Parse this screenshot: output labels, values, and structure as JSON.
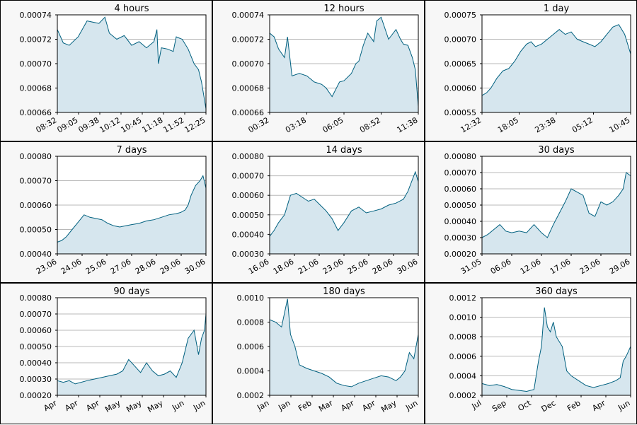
{
  "colors": {
    "line": "#00607f",
    "fill": "#d6e6ee",
    "grid": "#b8b8b8",
    "panel_bg": "#f7f7f7",
    "plot_bg": "#ffffff",
    "border": "#000000"
  },
  "chart_data": [
    {
      "type": "area",
      "title": "4 hours",
      "ylim": [
        0.00066,
        0.00074
      ],
      "yticks": [
        "0.00066",
        "0.00068",
        "0.00070",
        "0.00072",
        "0.00074"
      ],
      "xticks": [
        "08:32",
        "09:05",
        "09:38",
        "10:12",
        "10:45",
        "11:18",
        "11:52",
        "12:25"
      ],
      "grid": true,
      "series": [
        {
          "x": [
            0,
            0.04,
            0.08,
            0.14,
            0.2,
            0.28,
            0.32,
            0.35,
            0.4,
            0.45,
            0.5,
            0.55,
            0.6,
            0.65,
            0.67,
            0.68,
            0.7,
            0.74,
            0.78,
            0.8,
            0.84,
            0.88,
            0.92,
            0.95,
            0.97,
            1.0
          ],
          "y": [
            0.000728,
            0.000717,
            0.000715,
            0.000722,
            0.000735,
            0.000733,
            0.000738,
            0.000725,
            0.00072,
            0.000723,
            0.000715,
            0.000718,
            0.000713,
            0.000718,
            0.000728,
            0.0007,
            0.000713,
            0.000712,
            0.00071,
            0.000722,
            0.00072,
            0.000712,
            0.0007,
            0.000695,
            0.000685,
            0.000663
          ]
        }
      ]
    },
    {
      "type": "area",
      "title": "12 hours",
      "ylim": [
        0.00066,
        0.00074
      ],
      "yticks": [
        "0.00066",
        "0.00068",
        "0.00070",
        "0.00072",
        "0.00074"
      ],
      "xticks": [
        "00:32",
        "03:18",
        "06:05",
        "08:52",
        "11:38"
      ],
      "grid": true,
      "series": [
        {
          "x": [
            0,
            0.03,
            0.06,
            0.1,
            0.12,
            0.15,
            0.2,
            0.25,
            0.3,
            0.35,
            0.38,
            0.42,
            0.47,
            0.5,
            0.55,
            0.58,
            0.6,
            0.63,
            0.66,
            0.7,
            0.72,
            0.75,
            0.8,
            0.85,
            0.88,
            0.9,
            0.93,
            0.96,
            0.98,
            1.0
          ],
          "y": [
            0.000725,
            0.000722,
            0.000712,
            0.000705,
            0.000722,
            0.00069,
            0.000692,
            0.00069,
            0.000685,
            0.000683,
            0.00068,
            0.000673,
            0.000685,
            0.000686,
            0.000692,
            0.0007,
            0.000702,
            0.000715,
            0.000725,
            0.000718,
            0.000735,
            0.000738,
            0.00072,
            0.000728,
            0.00072,
            0.000716,
            0.000715,
            0.000705,
            0.000695,
            0.000665
          ]
        }
      ]
    },
    {
      "type": "area",
      "title": "1 day",
      "ylim": [
        0.00055,
        0.00075
      ],
      "yticks": [
        "0.00055",
        "0.00060",
        "0.00065",
        "0.00070",
        "0.00075"
      ],
      "xticks": [
        "12:32",
        "18:05",
        "23:38",
        "05:12",
        "10:45"
      ],
      "grid": true,
      "series": [
        {
          "x": [
            0,
            0.03,
            0.06,
            0.1,
            0.14,
            0.18,
            0.22,
            0.26,
            0.3,
            0.33,
            0.36,
            0.4,
            0.44,
            0.48,
            0.52,
            0.56,
            0.6,
            0.64,
            0.68,
            0.72,
            0.76,
            0.8,
            0.84,
            0.88,
            0.92,
            0.96,
            1.0
          ],
          "y": [
            0.000585,
            0.00059,
            0.0006,
            0.00062,
            0.000635,
            0.00064,
            0.000655,
            0.000675,
            0.00069,
            0.000695,
            0.000685,
            0.00069,
            0.0007,
            0.00071,
            0.00072,
            0.00071,
            0.000715,
            0.0007,
            0.000695,
            0.00069,
            0.000685,
            0.000695,
            0.00071,
            0.000725,
            0.00073,
            0.00071,
            0.00067
          ]
        }
      ]
    },
    {
      "type": "area",
      "title": "7 days",
      "ylim": [
        0.0004,
        0.0008
      ],
      "yticks": [
        "0.00040",
        "0.00050",
        "0.00060",
        "0.00070",
        "0.00080"
      ],
      "xticks": [
        "23.06",
        "24.06",
        "25.06",
        "27.06",
        "28.06",
        "29.06",
        "30.06"
      ],
      "grid": true,
      "series": [
        {
          "x": [
            0,
            0.03,
            0.06,
            0.1,
            0.14,
            0.18,
            0.22,
            0.26,
            0.3,
            0.34,
            0.38,
            0.42,
            0.46,
            0.5,
            0.55,
            0.6,
            0.65,
            0.7,
            0.75,
            0.8,
            0.83,
            0.86,
            0.88,
            0.9,
            0.93,
            0.96,
            0.98,
            1.0
          ],
          "y": [
            0.000448,
            0.000455,
            0.00047,
            0.0005,
            0.00053,
            0.00056,
            0.00055,
            0.000545,
            0.00054,
            0.000525,
            0.000515,
            0.00051,
            0.000515,
            0.00052,
            0.000525,
            0.000535,
            0.00054,
            0.00055,
            0.00056,
            0.000565,
            0.00057,
            0.00058,
            0.0006,
            0.00064,
            0.00068,
            0.0007,
            0.00072,
            0.00067
          ]
        }
      ]
    },
    {
      "type": "area",
      "title": "14 days",
      "ylim": [
        0.0003,
        0.0008
      ],
      "yticks": [
        "0.00030",
        "0.00040",
        "0.00050",
        "0.00060",
        "0.00070",
        "0.00080"
      ],
      "xticks": [
        "16.06",
        "18.06",
        "21.06",
        "23.06",
        "25.06",
        "28.06",
        "30.06"
      ],
      "grid": true,
      "series": [
        {
          "x": [
            0,
            0.03,
            0.06,
            0.1,
            0.14,
            0.18,
            0.22,
            0.26,
            0.3,
            0.34,
            0.38,
            0.42,
            0.46,
            0.5,
            0.55,
            0.6,
            0.65,
            0.7,
            0.75,
            0.8,
            0.85,
            0.9,
            0.93,
            0.96,
            0.98,
            1.0
          ],
          "y": [
            0.00039,
            0.00042,
            0.00046,
            0.0005,
            0.0006,
            0.00061,
            0.00059,
            0.00057,
            0.00058,
            0.00055,
            0.00052,
            0.00048,
            0.00042,
            0.00046,
            0.00052,
            0.00054,
            0.00051,
            0.00052,
            0.00053,
            0.00055,
            0.00056,
            0.00058,
            0.00062,
            0.00068,
            0.00072,
            0.00067
          ]
        }
      ]
    },
    {
      "type": "area",
      "title": "30 days",
      "ylim": [
        0.0002,
        0.0008
      ],
      "yticks": [
        "0.00020",
        "0.00030",
        "0.00040",
        "0.00050",
        "0.00060",
        "0.00070",
        "0.00080"
      ],
      "xticks": [
        "31.05",
        "06.06",
        "12.06",
        "17.06",
        "23.06",
        "29.06"
      ],
      "grid": true,
      "series": [
        {
          "x": [
            0,
            0.04,
            0.08,
            0.12,
            0.16,
            0.2,
            0.25,
            0.3,
            0.35,
            0.4,
            0.44,
            0.48,
            0.52,
            0.56,
            0.6,
            0.64,
            0.68,
            0.72,
            0.76,
            0.8,
            0.84,
            0.88,
            0.92,
            0.95,
            0.97,
            1.0
          ],
          "y": [
            0.0003,
            0.00032,
            0.00035,
            0.00038,
            0.00034,
            0.00033,
            0.00034,
            0.00033,
            0.00038,
            0.00033,
            0.0003,
            0.00038,
            0.00045,
            0.00052,
            0.0006,
            0.00058,
            0.00056,
            0.00045,
            0.00043,
            0.00052,
            0.0005,
            0.00052,
            0.00056,
            0.0006,
            0.0007,
            0.00068
          ]
        }
      ]
    },
    {
      "type": "area",
      "title": "90 days",
      "ylim": [
        0.0002,
        0.0008
      ],
      "yticks": [
        "0.00020",
        "0.00030",
        "0.00040",
        "0.00050",
        "0.00060",
        "0.00070",
        "0.00080"
      ],
      "xticks": [
        "Apr",
        "Apr",
        "Apr",
        "May",
        "May",
        "May",
        "Jun",
        "Jun"
      ],
      "grid": true,
      "series": [
        {
          "x": [
            0,
            0.04,
            0.08,
            0.12,
            0.16,
            0.2,
            0.25,
            0.3,
            0.35,
            0.4,
            0.44,
            0.48,
            0.52,
            0.56,
            0.6,
            0.64,
            0.68,
            0.72,
            0.76,
            0.8,
            0.84,
            0.88,
            0.92,
            0.95,
            0.97,
            0.99,
            1.0
          ],
          "y": [
            0.00029,
            0.00028,
            0.00029,
            0.00027,
            0.00028,
            0.00029,
            0.0003,
            0.00031,
            0.00032,
            0.00033,
            0.00035,
            0.00042,
            0.00038,
            0.00034,
            0.0004,
            0.00035,
            0.00032,
            0.00033,
            0.00035,
            0.00031,
            0.0004,
            0.00055,
            0.0006,
            0.00045,
            0.00055,
            0.0006,
            0.0007
          ]
        }
      ]
    },
    {
      "type": "area",
      "title": "180 days",
      "ylim": [
        0.0002,
        0.001
      ],
      "yticks": [
        "0.0002",
        "0.0004",
        "0.0006",
        "0.0008",
        "0.0010"
      ],
      "xticks": [
        "Jan",
        "Jan",
        "Feb",
        "Mar",
        "Apr",
        "Apr",
        "May",
        "Jun"
      ],
      "grid": true,
      "series": [
        {
          "x": [
            0,
            0.04,
            0.08,
            0.12,
            0.14,
            0.17,
            0.2,
            0.25,
            0.3,
            0.35,
            0.4,
            0.45,
            0.5,
            0.55,
            0.6,
            0.65,
            0.7,
            0.75,
            0.8,
            0.85,
            0.88,
            0.91,
            0.94,
            0.97,
            1.0
          ],
          "y": [
            0.00082,
            0.0008,
            0.00076,
            0.00099,
            0.0007,
            0.0006,
            0.00045,
            0.00042,
            0.0004,
            0.00038,
            0.00035,
            0.0003,
            0.00028,
            0.00027,
            0.0003,
            0.00032,
            0.00034,
            0.00036,
            0.00035,
            0.00032,
            0.00035,
            0.0004,
            0.00055,
            0.0005,
            0.0007
          ]
        }
      ]
    },
    {
      "type": "area",
      "title": "360 days",
      "ylim": [
        0.0002,
        0.0012
      ],
      "yticks": [
        "0.0002",
        "0.0004",
        "0.0006",
        "0.0008",
        "0.0010",
        "0.0012"
      ],
      "xticks": [
        "Jul",
        "Sep",
        "Oct",
        "Dec",
        "Feb",
        "Apr",
        "Jun"
      ],
      "grid": true,
      "series": [
        {
          "x": [
            0,
            0.05,
            0.1,
            0.15,
            0.2,
            0.25,
            0.3,
            0.35,
            0.38,
            0.4,
            0.42,
            0.44,
            0.46,
            0.48,
            0.5,
            0.52,
            0.54,
            0.57,
            0.6,
            0.65,
            0.7,
            0.75,
            0.8,
            0.85,
            0.9,
            0.93,
            0.95,
            0.97,
            1.0
          ],
          "y": [
            0.00032,
            0.0003,
            0.00031,
            0.00029,
            0.00026,
            0.00025,
            0.00024,
            0.00026,
            0.00055,
            0.0007,
            0.0011,
            0.0009,
            0.00085,
            0.00095,
            0.0008,
            0.00075,
            0.0007,
            0.00045,
            0.0004,
            0.00035,
            0.0003,
            0.00028,
            0.0003,
            0.00032,
            0.00035,
            0.00038,
            0.00055,
            0.0006,
            0.0007
          ]
        }
      ]
    }
  ]
}
